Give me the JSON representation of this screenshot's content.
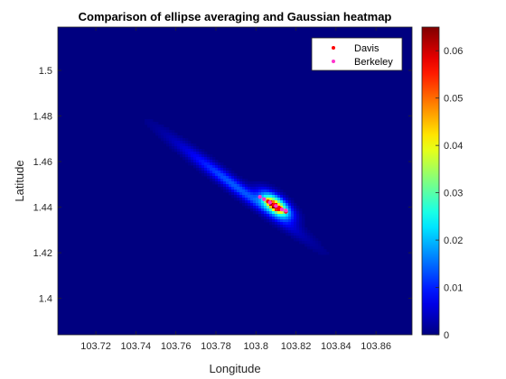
{
  "chart_data": {
    "type": "heatmap",
    "title": "Comparison of ellipse averaging and Gaussian heatmap",
    "xlabel": "Longitude",
    "ylabel": "Latitude",
    "xlim": [
      103.701,
      103.878
    ],
    "ylim": [
      1.384,
      1.519
    ],
    "xticks": [
      103.72,
      103.74,
      103.76,
      103.78,
      103.8,
      103.82,
      103.84,
      103.86
    ],
    "xtick_labels": [
      "103.72",
      "103.74",
      "103.76",
      "103.78",
      "103.8",
      "103.82",
      "103.84",
      "103.86"
    ],
    "yticks": [
      1.4,
      1.42,
      1.44,
      1.46,
      1.48,
      1.5
    ],
    "ytick_labels": [
      "1.4",
      "1.42",
      "1.44",
      "1.46",
      "1.48",
      "1.5"
    ],
    "colorbar": {
      "colormap": "jet",
      "clim": [
        0,
        0.065
      ],
      "ticks": [
        0,
        0.01,
        0.02,
        0.03,
        0.04,
        0.05,
        0.06
      ],
      "tick_labels": [
        "0",
        "0.01",
        "0.02",
        "0.03",
        "0.04",
        "0.05",
        "0.06"
      ]
    },
    "heat_components": [
      {
        "cx": 103.79,
        "cy": 1.449,
        "major": 0.05,
        "minor": 0.0045,
        "angle_deg": -33,
        "peak": 0.014
      },
      {
        "cx": 103.81,
        "cy": 1.441,
        "major": 0.013,
        "minor": 0.0055,
        "angle_deg": -33,
        "peak": 0.04
      },
      {
        "cx": 103.809,
        "cy": 1.4405,
        "major": 0.0065,
        "minor": 0.0022,
        "angle_deg": -33,
        "peak": 0.034
      }
    ],
    "series": [
      {
        "name": "Davis",
        "color": "#ff0000",
        "marker": "dot",
        "points": [
          [
            103.806,
            1.4425
          ],
          [
            103.809,
            1.441
          ],
          [
            103.812,
            1.4395
          ],
          [
            103.815,
            1.438
          ]
        ]
      },
      {
        "name": "Berkeley",
        "color": "#ff33cc",
        "marker": "dot",
        "points": [
          [
            103.802,
            1.4445
          ],
          [
            103.804,
            1.4435
          ],
          [
            103.807,
            1.442
          ],
          [
            103.81,
            1.4405
          ],
          [
            103.813,
            1.439
          ],
          [
            103.815,
            1.4385
          ]
        ]
      }
    ],
    "legend_position": "top-right",
    "grid": false
  }
}
